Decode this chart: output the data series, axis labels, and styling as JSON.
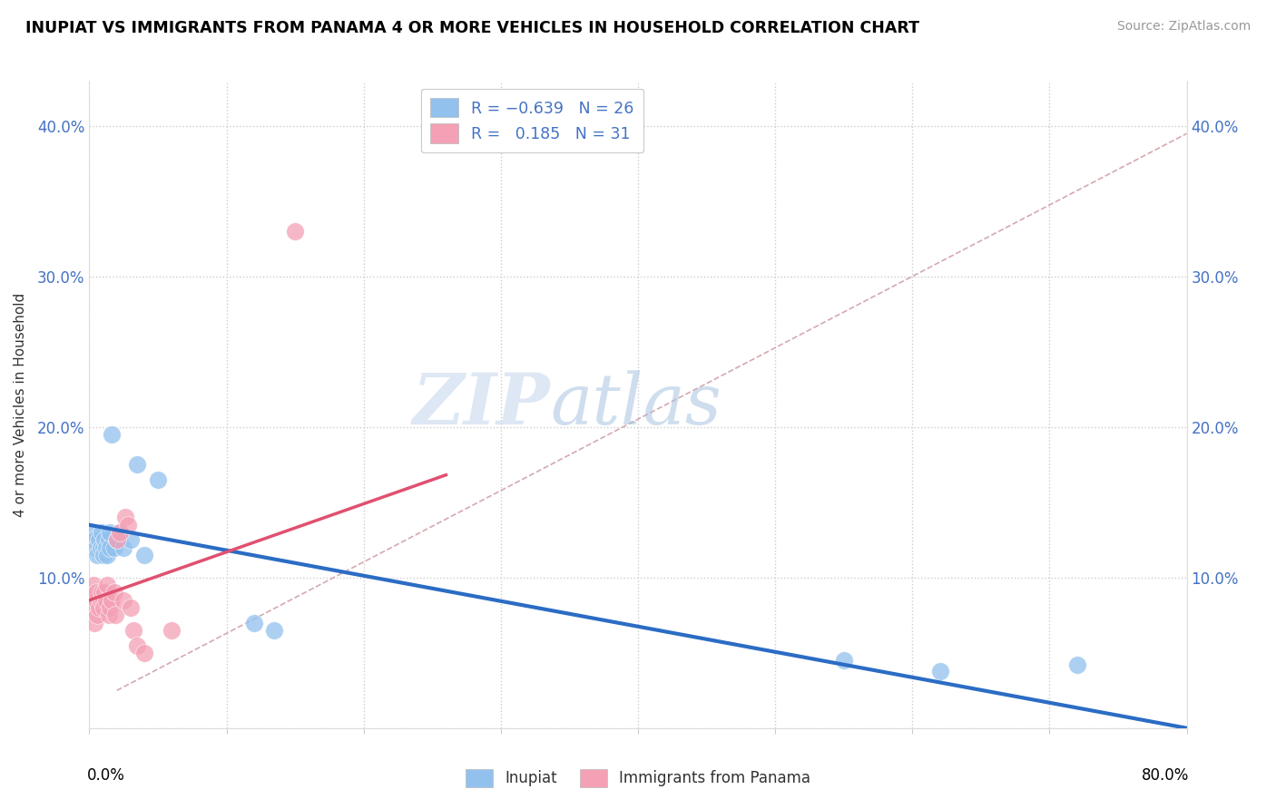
{
  "title": "INUPIAT VS IMMIGRANTS FROM PANAMA 4 OR MORE VEHICLES IN HOUSEHOLD CORRELATION CHART",
  "source": "Source: ZipAtlas.com",
  "ylabel": "4 or more Vehicles in Household",
  "ylim": [
    0,
    0.43
  ],
  "xlim": [
    0,
    0.8
  ],
  "ytick_values": [
    0.0,
    0.1,
    0.2,
    0.3,
    0.4
  ],
  "xtick_values": [
    0.0,
    0.1,
    0.2,
    0.3,
    0.4,
    0.5,
    0.6,
    0.7,
    0.8
  ],
  "legend_label1": "Inupiat",
  "legend_label2": "Immigrants from Panama",
  "color_blue": "#92C1EE",
  "color_pink": "#F4A0B5",
  "line_blue": "#2B6CC4",
  "line_pink": "#E05070",
  "line_dash_color": "#D0A0A8",
  "watermark_zip": "ZIP",
  "watermark_atlas": "atlas",
  "inupiat_x": [
    0.003,
    0.004,
    0.005,
    0.006,
    0.007,
    0.008,
    0.009,
    0.01,
    0.01,
    0.011,
    0.012,
    0.013,
    0.014,
    0.015,
    0.015,
    0.016,
    0.018,
    0.02,
    0.022,
    0.025,
    0.03,
    0.035,
    0.04,
    0.05,
    0.12,
    0.135,
    0.55,
    0.62,
    0.72
  ],
  "inupiat_y": [
    0.13,
    0.125,
    0.12,
    0.115,
    0.125,
    0.12,
    0.13,
    0.12,
    0.115,
    0.125,
    0.12,
    0.115,
    0.125,
    0.12,
    0.13,
    0.195,
    0.12,
    0.125,
    0.13,
    0.12,
    0.125,
    0.175,
    0.115,
    0.165,
    0.07,
    0.065,
    0.045,
    0.038,
    0.042
  ],
  "panama_x": [
    0.001,
    0.002,
    0.003,
    0.004,
    0.005,
    0.005,
    0.006,
    0.007,
    0.008,
    0.009,
    0.01,
    0.01,
    0.011,
    0.012,
    0.013,
    0.014,
    0.015,
    0.016,
    0.018,
    0.019,
    0.02,
    0.022,
    0.025,
    0.026,
    0.028,
    0.03,
    0.032,
    0.035,
    0.04,
    0.06,
    0.15
  ],
  "panama_y": [
    0.085,
    0.08,
    0.095,
    0.07,
    0.085,
    0.09,
    0.075,
    0.08,
    0.085,
    0.09,
    0.085,
    0.08,
    0.09,
    0.085,
    0.095,
    0.075,
    0.08,
    0.085,
    0.09,
    0.075,
    0.125,
    0.13,
    0.085,
    0.14,
    0.135,
    0.08,
    0.065,
    0.055,
    0.05,
    0.065,
    0.33
  ]
}
